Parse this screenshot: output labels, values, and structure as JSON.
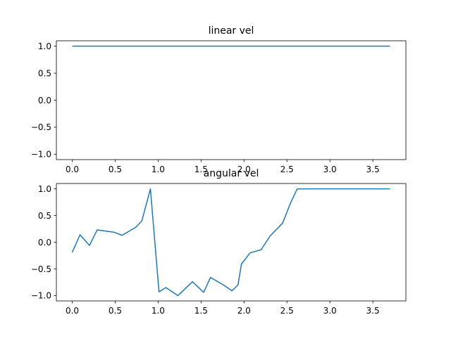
{
  "chart_data": [
    {
      "type": "line",
      "title": "linear vel",
      "xlim": [
        -0.185,
        3.885
      ],
      "ylim": [
        -1.1,
        1.1
      ],
      "xticks": [
        0.0,
        0.5,
        1.0,
        1.5,
        2.0,
        2.5,
        3.0,
        3.5
      ],
      "xtick_labels": [
        "0.0",
        "0.5",
        "1.0",
        "1.5",
        "2.0",
        "2.5",
        "3.0",
        "3.5"
      ],
      "yticks": [
        1.0,
        0.5,
        0.0,
        -0.5,
        -1.0
      ],
      "ytick_labels": [
        "1.0",
        "0.5",
        "0.0",
        "−0.5",
        "−1.0"
      ],
      "line_color": "#1f77b4",
      "series": [
        {
          "x": [
            0.0,
            3.7
          ],
          "y": [
            1.0,
            1.0
          ]
        }
      ]
    },
    {
      "type": "line",
      "title": "angular vel",
      "xlim": [
        -0.185,
        3.885
      ],
      "ylim": [
        -1.1,
        1.1
      ],
      "xticks": [
        0.0,
        0.5,
        1.0,
        1.5,
        2.0,
        2.5,
        3.0,
        3.5
      ],
      "xtick_labels": [
        "0.0",
        "0.5",
        "1.0",
        "1.5",
        "2.0",
        "2.5",
        "3.0",
        "3.5"
      ],
      "yticks": [
        1.0,
        0.5,
        0.0,
        -0.5,
        -1.0
      ],
      "ytick_labels": [
        "1.0",
        "0.5",
        "0.0",
        "−0.5",
        "−1.0"
      ],
      "line_color": "#1f77b4",
      "series": [
        {
          "x": [
            0.0,
            0.09,
            0.2,
            0.29,
            0.48,
            0.58,
            0.74,
            0.81,
            0.91,
            1.01,
            1.09,
            1.23,
            1.4,
            1.53,
            1.61,
            1.77,
            1.86,
            1.93,
            1.97,
            2.07,
            2.2,
            2.3,
            2.45,
            2.54,
            2.62,
            3.7
          ],
          "y": [
            -0.19,
            0.14,
            -0.06,
            0.23,
            0.19,
            0.13,
            0.28,
            0.4,
            1.0,
            -0.93,
            -0.85,
            -1.0,
            -0.74,
            -0.94,
            -0.66,
            -0.81,
            -0.91,
            -0.8,
            -0.41,
            -0.2,
            -0.14,
            0.11,
            0.36,
            0.73,
            1.0,
            1.0
          ]
        }
      ]
    }
  ]
}
